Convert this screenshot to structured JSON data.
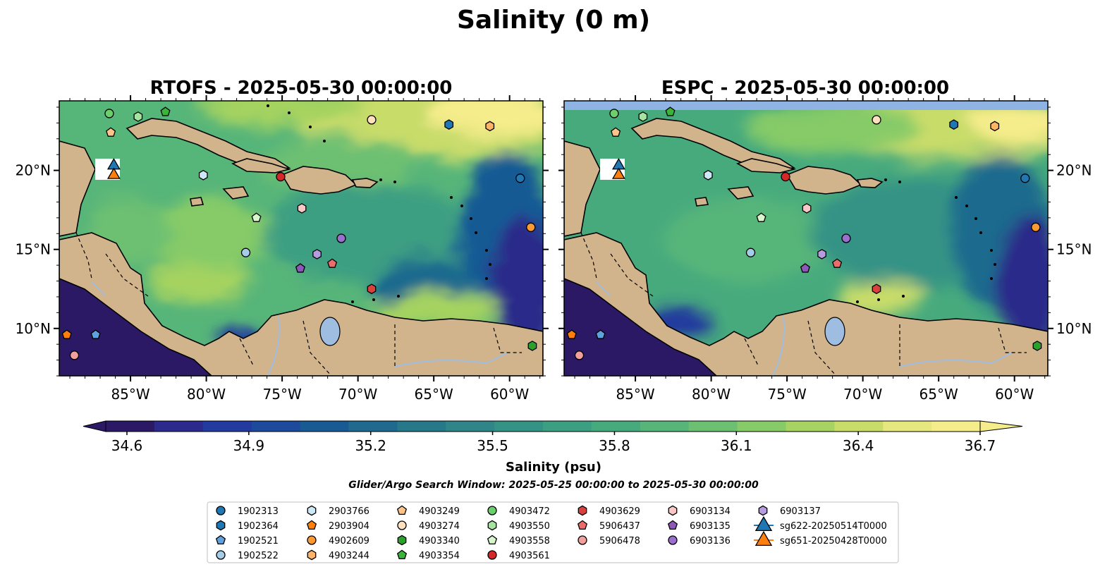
{
  "figure": {
    "title": "Salinity (0 m)",
    "search_window": "Glider/Argo Search Window: 2025-05-25 00:00:00 to 2025-05-30 00:00:00"
  },
  "colors": {
    "land": "#d2b48c",
    "lakes": "#9fbde0",
    "no_data_band": "#8fb3e2",
    "colormap": [
      "#2b1966",
      "#2c2a8a",
      "#233a9e",
      "#1d4a9a",
      "#185a94",
      "#1f6a8e",
      "#277889",
      "#2f8587",
      "#359385",
      "#3d9f82",
      "#47aa7d",
      "#57b579",
      "#6dc072",
      "#86cb68",
      "#a6d361",
      "#c8dc6a",
      "#e6e77e",
      "#f5ec8b"
    ],
    "series": {
      "1902313": "#1f77b4",
      "1902364": "#1f77b4",
      "1902521": "#5fa2dd",
      "1902522": "#a6cde8",
      "2903766": "#cfe8f7",
      "2903904": "#ff7f0e",
      "4902609": "#ff9933",
      "4903244": "#ffb366",
      "4903249": "#ffc48a",
      "4903274": "#ffe0bf",
      "4903340": "#2ca02c",
      "4903354": "#3cb43c",
      "4903472": "#6bcf6b",
      "4903550": "#a6e3a1",
      "4903558": "#d9f5cc",
      "4903561": "#d62728",
      "4903629": "#d9413f",
      "5906437": "#ea6d6b",
      "5906478": "#f2a09e",
      "6903134": "#f9c7c5",
      "6903135": "#8c59b8",
      "6903136": "#9a6fcd",
      "6903137": "#b79be0",
      "sg622-20250514T0000": "#1f77b4",
      "sg651-20250428T0000": "#ff7f0e"
    }
  },
  "chart_data": [
    {
      "type": "heatmap",
      "title": "RTOFS - 2025-05-30 00:00:00",
      "xlim": [
        -89.7,
        -57.8
      ],
      "ylim": [
        7.0,
        24.4
      ],
      "xticks": [
        -85,
        -80,
        -75,
        -70,
        -65,
        -60
      ],
      "xtick_labels": [
        "85°W",
        "80°W",
        "75°W",
        "70°W",
        "65°W",
        "60°W"
      ],
      "yticks": [
        10,
        15,
        20
      ],
      "ytick_labels": [
        "10°N",
        "15°N",
        "20°N"
      ],
      "ytick_side": "left"
    },
    {
      "type": "heatmap",
      "title": "ESPC - 2025-05-30 00:00:00",
      "xlim": [
        -89.7,
        -57.8
      ],
      "ylim": [
        7.0,
        24.4
      ],
      "xticks": [
        -85,
        -80,
        -75,
        -70,
        -65,
        -60
      ],
      "xtick_labels": [
        "85°W",
        "80°W",
        "75°W",
        "70°W",
        "65°W",
        "60°W"
      ],
      "yticks": [
        10,
        15,
        20
      ],
      "ytick_labels": [
        "10°N",
        "15°N",
        "20°N"
      ],
      "ytick_side": "right"
    }
  ],
  "colorbar": {
    "label": "Salinity (psu)",
    "range": [
      34.6,
      36.7
    ],
    "ticks": [
      34.6,
      34.9,
      35.2,
      35.5,
      35.8,
      36.1,
      36.4,
      36.7
    ],
    "tick_labels": [
      "34.6",
      "34.9",
      "35.2",
      "35.5",
      "35.8",
      "36.1",
      "36.4",
      "36.7"
    ],
    "extend": "both"
  },
  "markers": [
    {
      "name": "1902313",
      "shape": "circle",
      "lon": -59.3,
      "lat": 19.5
    },
    {
      "name": "1902364",
      "shape": "hexagon",
      "lon": -64.0,
      "lat": 22.9
    },
    {
      "name": "1902521",
      "shape": "pentagon",
      "lon": -87.3,
      "lat": 9.6
    },
    {
      "name": "1902522",
      "shape": "circle",
      "lon": -77.4,
      "lat": 14.8
    },
    {
      "name": "2903766",
      "shape": "hexagon",
      "lon": -80.2,
      "lat": 19.7
    },
    {
      "name": "2903904",
      "shape": "pentagon",
      "lon": -89.2,
      "lat": 9.6
    },
    {
      "name": "4902609",
      "shape": "circle",
      "lon": -58.6,
      "lat": 16.4
    },
    {
      "name": "4903244",
      "shape": "hexagon",
      "lon": -61.3,
      "lat": 22.8
    },
    {
      "name": "4903249",
      "shape": "pentagon",
      "lon": -86.3,
      "lat": 22.4
    },
    {
      "name": "4903274",
      "shape": "circle",
      "lon": -69.1,
      "lat": 23.2
    },
    {
      "name": "4903340",
      "shape": "hexagon",
      "lon": -58.5,
      "lat": 8.9
    },
    {
      "name": "4903354",
      "shape": "pentagon",
      "lon": -82.7,
      "lat": 23.7
    },
    {
      "name": "4903472",
      "shape": "circle",
      "lon": -86.4,
      "lat": 23.6
    },
    {
      "name": "4903550",
      "shape": "hexagon",
      "lon": -84.5,
      "lat": 23.4
    },
    {
      "name": "4903558",
      "shape": "pentagon",
      "lon": -76.7,
      "lat": 17.0
    },
    {
      "name": "4903561",
      "shape": "circle",
      "lon": -75.1,
      "lat": 19.6
    },
    {
      "name": "4903629",
      "shape": "hexagon",
      "lon": -69.1,
      "lat": 12.5
    },
    {
      "name": "5906437",
      "shape": "pentagon",
      "lon": -71.7,
      "lat": 14.1
    },
    {
      "name": "5906478",
      "shape": "circle",
      "lon": -88.7,
      "lat": 8.3
    },
    {
      "name": "6903134",
      "shape": "hexagon",
      "lon": -73.7,
      "lat": 17.6
    },
    {
      "name": "6903135",
      "shape": "pentagon",
      "lon": -73.8,
      "lat": 13.8
    },
    {
      "name": "6903136",
      "shape": "circle",
      "lon": -71.1,
      "lat": 15.7
    },
    {
      "name": "6903137",
      "shape": "hexagon",
      "lon": -72.7,
      "lat": 14.7
    },
    {
      "name": "sg622-20250514T0000",
      "shape": "triangle",
      "lon": -86.1,
      "lat": 20.3
    },
    {
      "name": "sg651-20250428T0000",
      "shape": "triangle",
      "lon": -86.1,
      "lat": 19.7
    }
  ],
  "legend": {
    "placement": "bottom-center",
    "columns": [
      [
        "1902313",
        "1902364",
        "1902521",
        "1902522"
      ],
      [
        "2903766",
        "2903904",
        "4902609",
        "4903244"
      ],
      [
        "4903249",
        "4903274",
        "4903340",
        "4903354"
      ],
      [
        "4903472",
        "4903550",
        "4903558",
        "4903561"
      ],
      [
        "4903629",
        "5906437",
        "5906478"
      ],
      [
        "6903134",
        "6903135",
        "6903136"
      ],
      [
        "6903137",
        "sg622-20250514T0000",
        "sg651-20250428T0000"
      ]
    ]
  }
}
